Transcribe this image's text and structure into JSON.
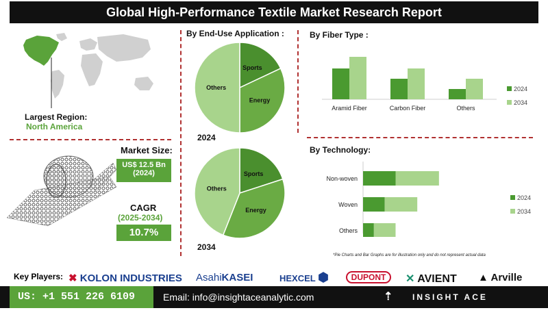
{
  "title": "Global High-Performance Textile Market Research Report",
  "sections": {
    "end_use": "By End-Use Application :",
    "fiber": "By Fiber Type :",
    "technology": "By Technology:"
  },
  "left": {
    "largest_region_label": "Largest Region:",
    "largest_region_value": "North America",
    "market_size_label": "Market Size:",
    "market_size_value": "US$ 12.5 Bn",
    "market_size_year": "(2024)",
    "cagr_label": "CAGR",
    "cagr_period": "(2025-2034)",
    "cagr_value": "10.7%"
  },
  "chart_data": [
    {
      "type": "pie",
      "year_label": "2024",
      "slices": [
        {
          "name": "Sports",
          "value": 18
        },
        {
          "name": "Energy",
          "value": 32
        },
        {
          "name": "Others",
          "value": 50
        }
      ]
    },
    {
      "type": "pie",
      "year_label": "2034",
      "slices": [
        {
          "name": "Sports",
          "value": 20
        },
        {
          "name": "Energy",
          "value": 36
        },
        {
          "name": "Others",
          "value": 44
        }
      ]
    },
    {
      "type": "bar",
      "categories": [
        "Aramid Fiber",
        "Carbon Fiber",
        "Others"
      ],
      "series": [
        {
          "name": "2024",
          "values": [
            45,
            30,
            15
          ],
          "color": "#4a9a30"
        },
        {
          "name": "2034",
          "values": [
            62,
            45,
            30
          ],
          "color": "#a8d48c"
        }
      ],
      "ylim": [
        0,
        80
      ],
      "legend": "right"
    },
    {
      "type": "bar",
      "orientation": "horizontal-stacked",
      "categories": [
        "Non-woven",
        "Woven",
        "Others"
      ],
      "series": [
        {
          "name": "2024",
          "values": [
            30,
            20,
            10
          ],
          "color": "#4a9a30"
        },
        {
          "name": "2034",
          "values": [
            40,
            30,
            20
          ],
          "color": "#a8d48c"
        }
      ],
      "xlim": [
        0,
        120
      ],
      "legend": "right"
    }
  ],
  "footnote": "*Pie Charts and Bar Graphs are for illustration only and do not represent actual data",
  "key_players_label": "Key Players:",
  "logos": [
    "KOLON INDUSTRIES",
    "Asahi",
    "KASEI",
    "HEXCEL",
    "DUPONT",
    "AVIENT",
    "Arville"
  ],
  "contact": {
    "phone": "US: +1 551 226 6109",
    "email": "Email: info@insightaceanalytic.com",
    "brand": "INSIGHT ACE ANALYTIC"
  },
  "colors": {
    "dark_green": "#4a9a30",
    "light_green": "#a8d48c",
    "pie_mid": "#6fad46",
    "divider": "#b03030"
  }
}
